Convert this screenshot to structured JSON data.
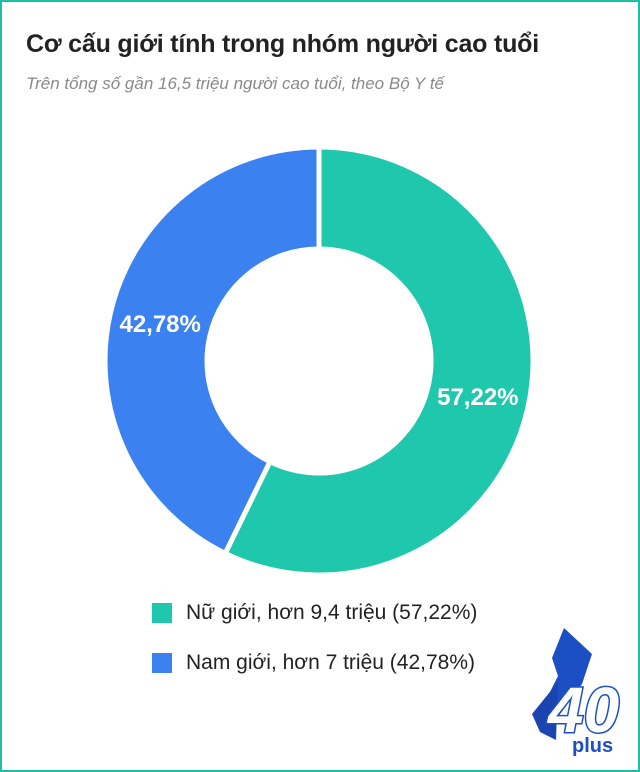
{
  "header": {
    "title": "Cơ cấu giới tính trong nhóm người cao tuổi",
    "subtitle": "Trên tổng số gần 16,5 triệu người cao tuổi, theo Bộ Y tế"
  },
  "chart_data": {
    "type": "pie",
    "style": "donut",
    "categories": [
      "Nữ giới",
      "Nam giới"
    ],
    "values": [
      57.22,
      42.78
    ],
    "data_labels": [
      "57,22%",
      "42,78%"
    ],
    "colors": [
      "#1fc7ad",
      "#3b82f0"
    ],
    "legend_position": "bottom"
  },
  "legend": {
    "items": [
      {
        "label": "Nữ giới, hơn 9,4 triệu (57,22%)",
        "color": "#1fc7ad"
      },
      {
        "label": "Nam giới, hơn 7 triệu (42,78%)",
        "color": "#3b82f0"
      }
    ]
  },
  "logo": {
    "icon": "40plus-logo",
    "number": "40",
    "text": "plus",
    "color": "#1d4fc4"
  }
}
